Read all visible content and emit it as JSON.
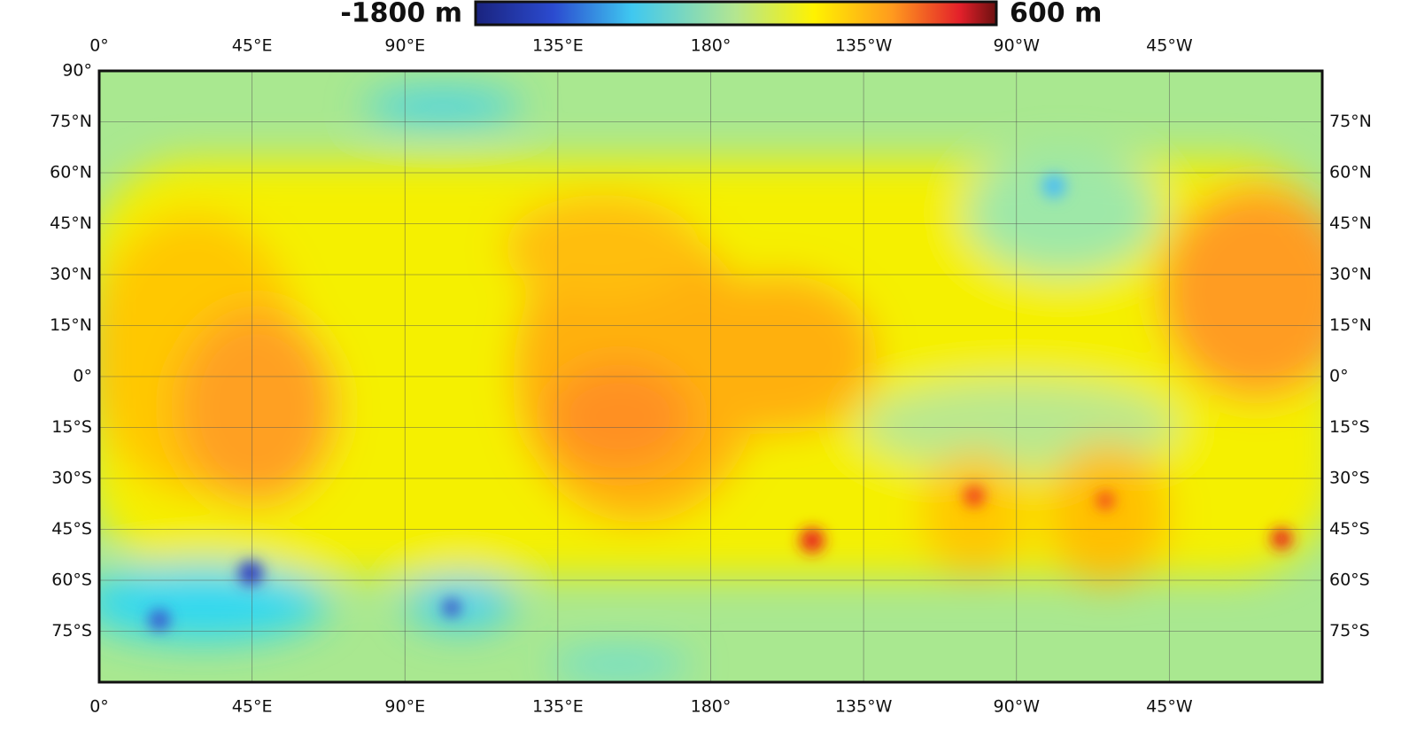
{
  "colorbar": {
    "min_label": "-1800 m",
    "max_label": "600 m"
  },
  "longitude_labels_top": [
    "0°",
    "45°E",
    "90°E",
    "135°E",
    "180°",
    "135°W",
    "90°W",
    "45°W"
  ],
  "longitude_labels_bottom": [
    "0°",
    "45°E",
    "90°E",
    "135°E",
    "180°",
    "135°W",
    "90°W",
    "45°W"
  ],
  "latitude_labels_left": [
    "90°",
    "75°N",
    "60°N",
    "45°N",
    "30°N",
    "15°N",
    "0°",
    "15°S",
    "30°S",
    "45°S",
    "60°S",
    "75°S"
  ],
  "latitude_labels_right": [
    "75°N",
    "60°N",
    "45°N",
    "30°N",
    "15°N",
    "0°",
    "15°S",
    "30°S",
    "45°S",
    "60°S",
    "75°S"
  ]
}
